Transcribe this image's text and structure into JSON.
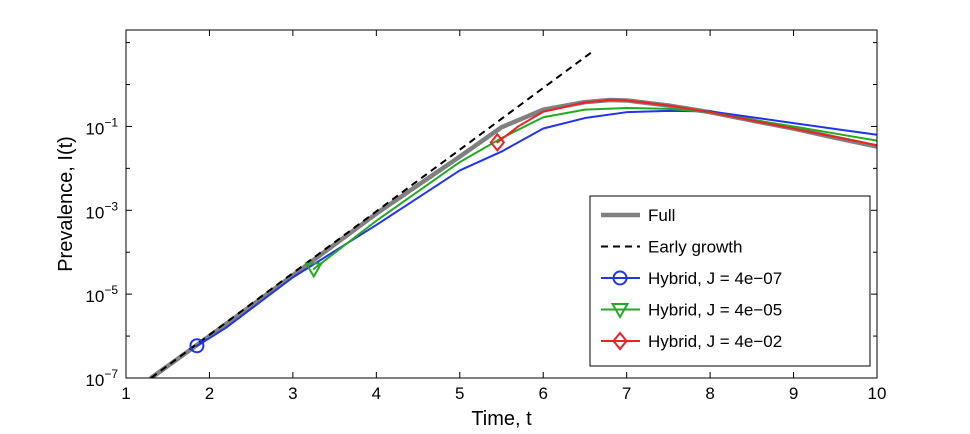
{
  "chart_data": {
    "type": "line",
    "title": "",
    "xlabel": "Time, t",
    "ylabel": "Prevalence, I(t)",
    "xlim": [
      1,
      10
    ],
    "ylim_log10": [
      -7,
      1.3
    ],
    "yscale": "log",
    "grid": false,
    "legend_position": "bottom-right",
    "x_ticks": [
      1,
      2,
      3,
      4,
      5,
      6,
      7,
      8,
      9,
      10
    ],
    "x_tick_labels": [
      "1",
      "2",
      "3",
      "4",
      "5",
      "6",
      "7",
      "8",
      "9",
      "10"
    ],
    "y_ticks_log10": [
      -7,
      -5,
      -3,
      -1
    ],
    "y_tick_labels": [
      {
        "base": "10",
        "exp": "-7"
      },
      {
        "base": "10",
        "exp": "-5"
      },
      {
        "base": "10",
        "exp": "-3"
      },
      {
        "base": "10",
        "exp": "-1"
      }
    ],
    "series": [
      {
        "name": "Full",
        "color": "#808080",
        "style": "solid-thick",
        "marker": "none",
        "points": [
          [
            1.3,
            -7.0
          ],
          [
            2.0,
            -6.0
          ],
          [
            3.0,
            -4.55
          ],
          [
            4.0,
            -3.08
          ],
          [
            5.0,
            -1.72
          ],
          [
            5.5,
            -1.02
          ],
          [
            6.0,
            -0.6
          ],
          [
            6.5,
            -0.42
          ],
          [
            6.8,
            -0.37
          ],
          [
            7.0,
            -0.38
          ],
          [
            7.5,
            -0.5
          ],
          [
            8.0,
            -0.66
          ],
          [
            8.5,
            -0.86
          ],
          [
            9.0,
            -1.05
          ],
          [
            9.5,
            -1.27
          ],
          [
            10.0,
            -1.48
          ]
        ]
      },
      {
        "name": "Early growth",
        "color": "#000000",
        "style": "dashed",
        "marker": "none",
        "points": [
          [
            1.3,
            -7.0
          ],
          [
            6.6,
            0.8
          ]
        ]
      },
      {
        "name": "Hybrid, J = 4e−07",
        "color": "#2233ee",
        "style": "solid",
        "marker": "circle",
        "marker_at": [
          1.85,
          -6.23
        ],
        "points": [
          [
            1.85,
            -6.23
          ],
          [
            2.0,
            -6.05
          ],
          [
            2.2,
            -5.8
          ],
          [
            3.0,
            -4.6
          ],
          [
            4.0,
            -3.35
          ],
          [
            5.0,
            -2.05
          ],
          [
            5.5,
            -1.6
          ],
          [
            6.0,
            -1.05
          ],
          [
            6.5,
            -0.8
          ],
          [
            7.0,
            -0.66
          ],
          [
            7.5,
            -0.63
          ],
          [
            8.0,
            -0.64
          ],
          [
            8.5,
            -0.78
          ],
          [
            9.0,
            -0.92
          ],
          [
            9.5,
            -1.06
          ],
          [
            10.0,
            -1.2
          ]
        ]
      },
      {
        "name": "Hybrid, J = 4e−05",
        "color": "#22aa22",
        "style": "solid",
        "marker": "triangle-down",
        "marker_at": [
          3.25,
          -4.4
        ],
        "points": [
          [
            3.25,
            -4.4
          ],
          [
            4.0,
            -3.25
          ],
          [
            5.0,
            -1.85
          ],
          [
            5.5,
            -1.28
          ],
          [
            6.0,
            -0.78
          ],
          [
            6.5,
            -0.6
          ],
          [
            7.0,
            -0.56
          ],
          [
            7.5,
            -0.58
          ],
          [
            8.0,
            -0.66
          ],
          [
            8.5,
            -0.84
          ],
          [
            9.0,
            -1.0
          ],
          [
            9.5,
            -1.17
          ],
          [
            10.0,
            -1.34
          ]
        ]
      },
      {
        "name": "Hybrid, J = 4e−02",
        "color": "#ee2222",
        "style": "solid",
        "marker": "diamond",
        "marker_at": [
          5.45,
          -1.38
        ],
        "points": [
          [
            5.45,
            -1.38
          ],
          [
            5.7,
            -1.0
          ],
          [
            6.0,
            -0.65
          ],
          [
            6.5,
            -0.43
          ],
          [
            6.8,
            -0.37
          ],
          [
            7.0,
            -0.38
          ],
          [
            7.5,
            -0.5
          ],
          [
            8.0,
            -0.66
          ],
          [
            8.5,
            -0.86
          ],
          [
            9.0,
            -1.05
          ],
          [
            9.5,
            -1.25
          ],
          [
            10.0,
            -1.45
          ]
        ]
      }
    ]
  }
}
